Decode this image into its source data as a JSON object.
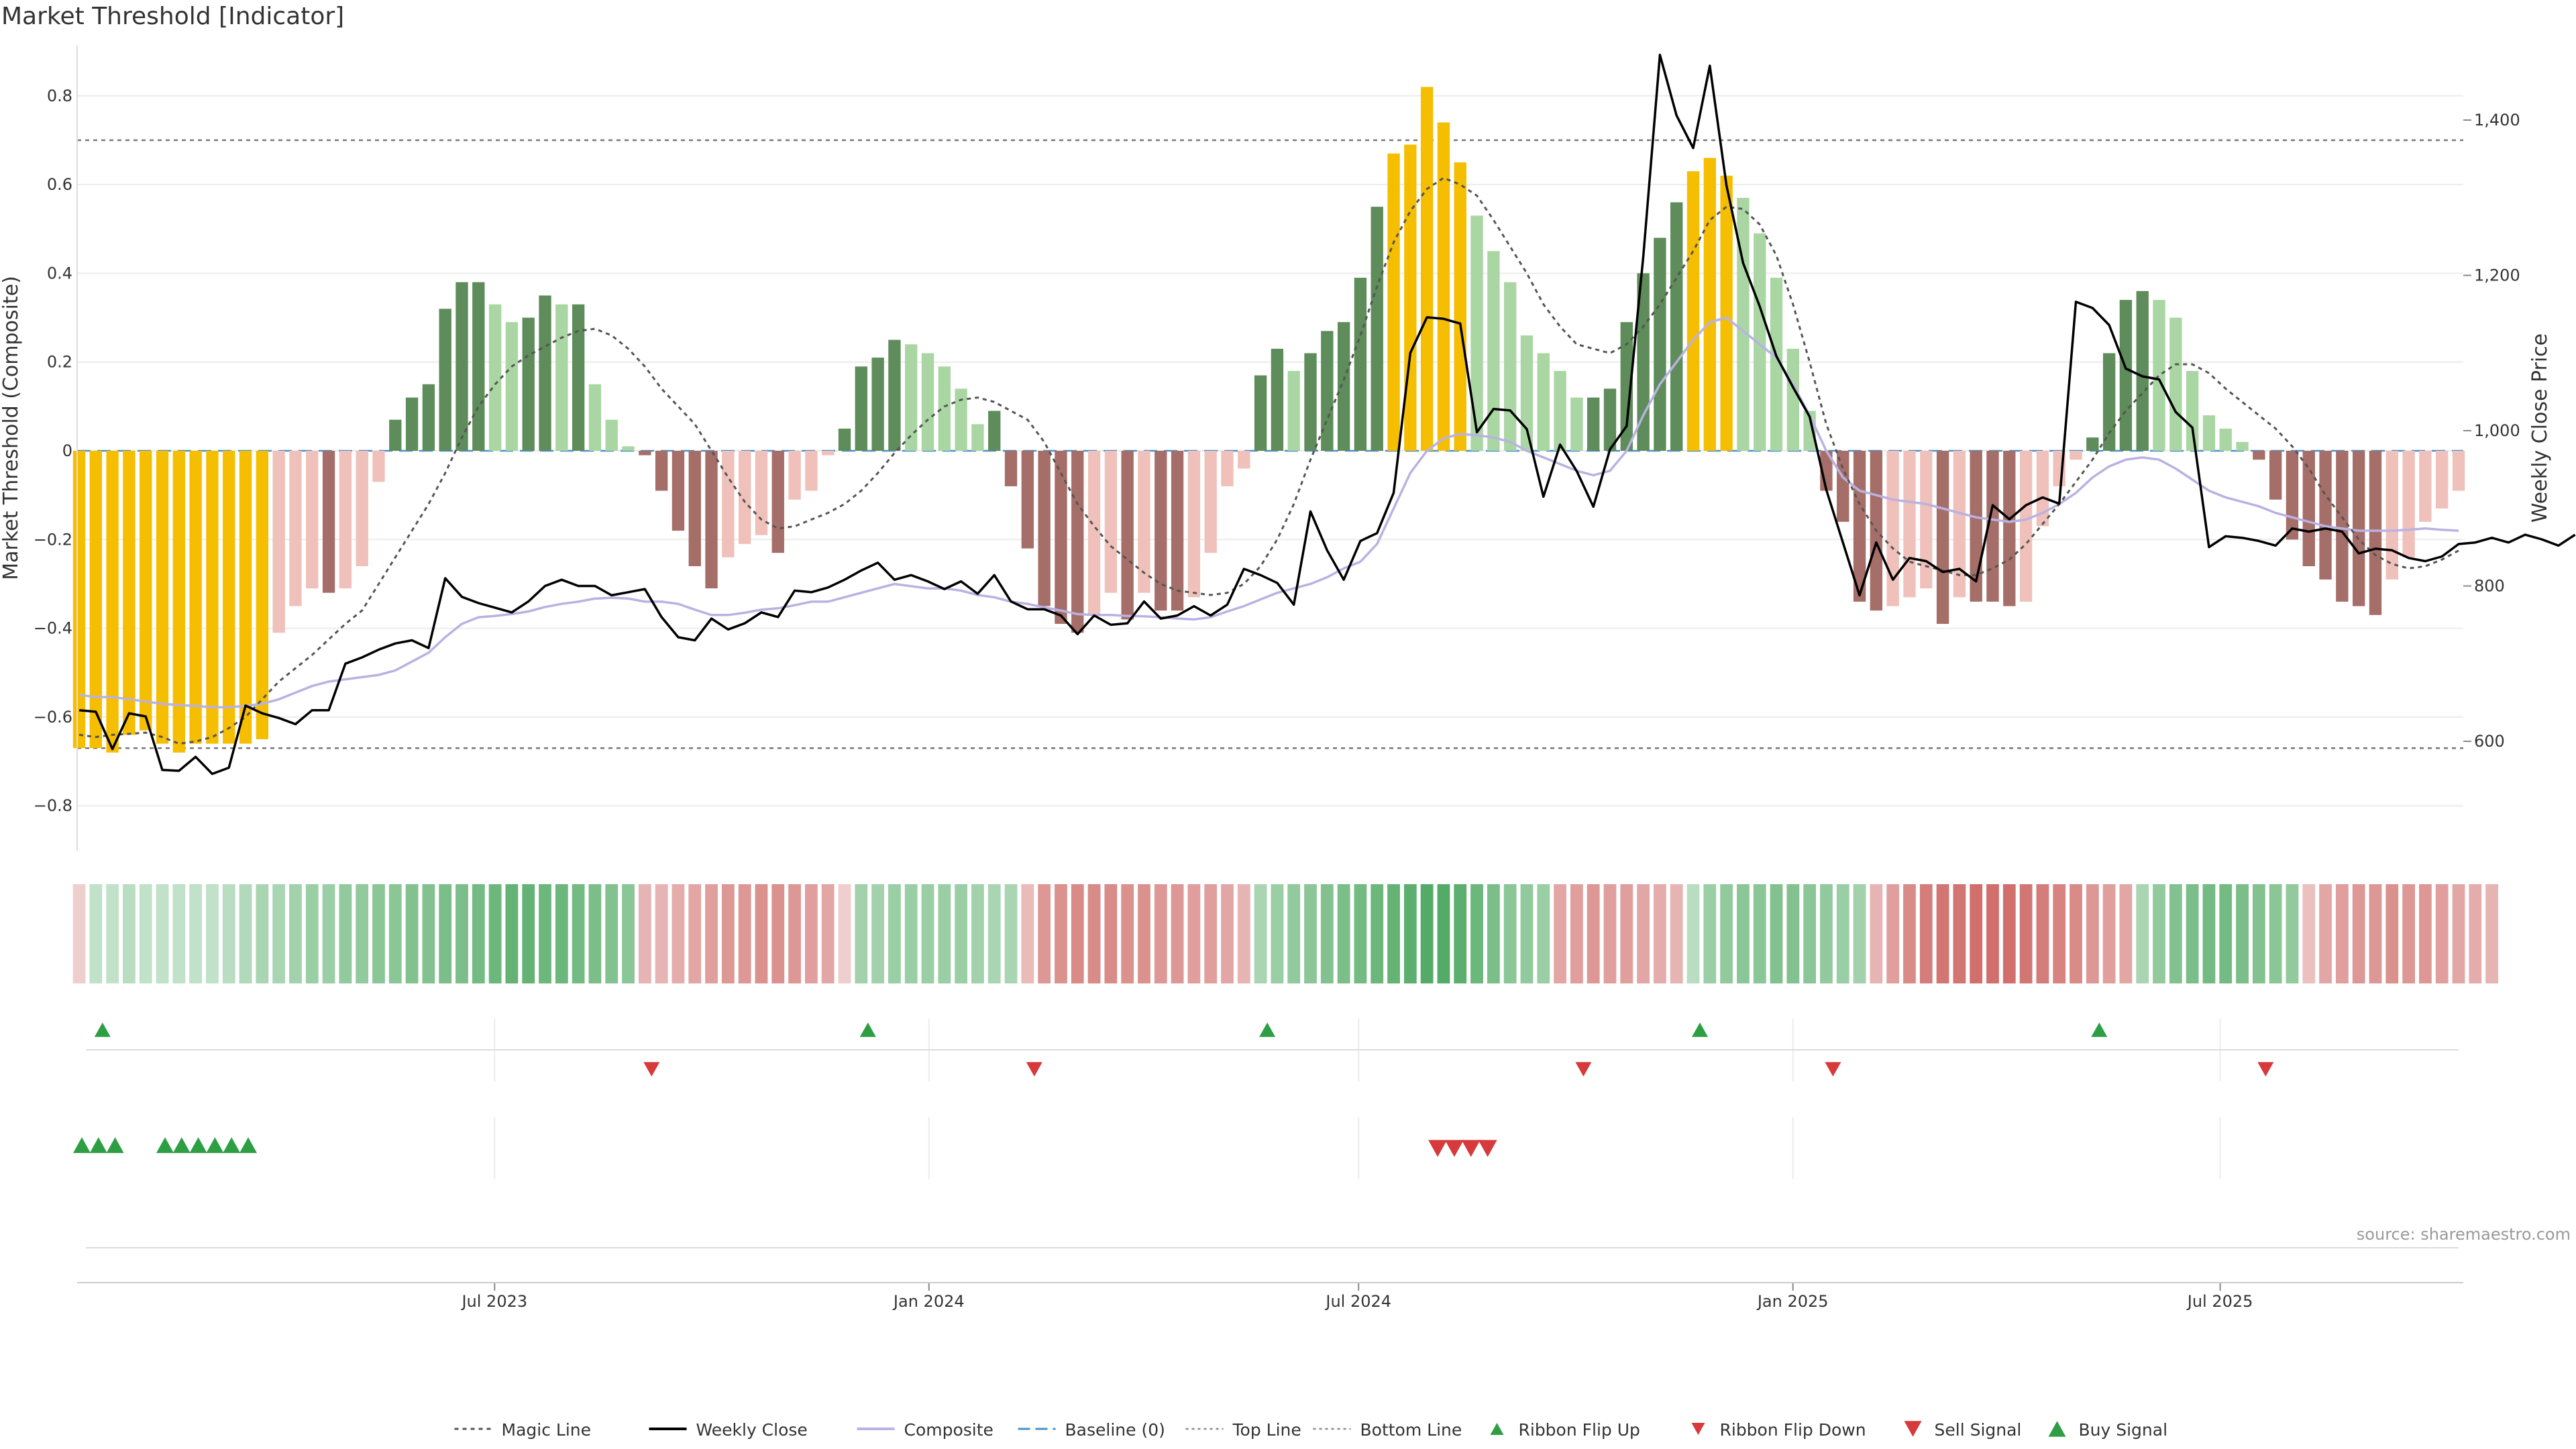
{
  "title": "Market Threshold [Indicator]",
  "source": "source: sharemaestro.com",
  "colors": {
    "gold": "#F5BE00",
    "green_dark": "#5E8C5A",
    "green_light": "#AAD6A3",
    "red_dark": "#A56E69",
    "red_light": "#EFC1BA",
    "weekly_close": "#000000",
    "composite": "#B9B2E2",
    "magic": "#555555",
    "baseline": "#4A90C8",
    "up_marker": "#2E9E45",
    "down_marker": "#D63A3A"
  },
  "chart_data": {
    "type": "bar",
    "title": "Market Threshold [Indicator]",
    "ylabel": "Market Threshold (Composite)",
    "y2label": "Weekly Close Price",
    "ylim": [
      -0.9,
      0.9
    ],
    "y2lim": [
      500,
      1500
    ],
    "yticks": [
      -0.8,
      -0.6,
      -0.4,
      -0.2,
      0,
      0.2,
      0.4,
      0.6,
      0.8
    ],
    "yticklabels": [
      "−0.8",
      "−0.6",
      "−0.4",
      "−0.2",
      "0",
      "0.2",
      "0.4",
      "0.6",
      "0.8"
    ],
    "y2ticks": [
      600,
      800,
      1000,
      1200,
      1400
    ],
    "y2ticklabels": [
      "600",
      "800",
      "1,000",
      "1,200",
      "1,400"
    ],
    "top_line": 0.7,
    "bottom_line": -0.67,
    "baseline": 0,
    "x_start": "2023-01-06",
    "x_end": "2025-10-10",
    "xticks": [
      {
        "date": "2023-07-01",
        "label": "Jul 2023"
      },
      {
        "date": "2024-01-01",
        "label": "Jan 2024"
      },
      {
        "date": "2024-07-01",
        "label": "Jul 2024"
      },
      {
        "date": "2025-01-01",
        "label": "Jan 2025"
      },
      {
        "date": "2025-07-01",
        "label": "Jul 2025"
      }
    ],
    "composite_bars": [
      -0.67,
      -0.67,
      -0.68,
      -0.64,
      -0.63,
      -0.66,
      -0.68,
      -0.66,
      -0.66,
      -0.66,
      -0.66,
      -0.65,
      -0.41,
      -0.35,
      -0.31,
      -0.32,
      -0.31,
      -0.26,
      -0.07,
      0.07,
      0.12,
      0.15,
      0.32,
      0.38,
      0.38,
      0.33,
      0.29,
      0.3,
      0.35,
      0.33,
      0.33,
      0.15,
      0.07,
      0.01,
      -0.01,
      -0.09,
      -0.18,
      -0.26,
      -0.31,
      -0.24,
      -0.21,
      -0.19,
      -0.23,
      -0.11,
      -0.09,
      -0.01,
      0.05,
      0.19,
      0.21,
      0.25,
      0.24,
      0.22,
      0.19,
      0.14,
      0.06,
      0.09,
      -0.08,
      -0.22,
      -0.35,
      -0.39,
      -0.41,
      -0.37,
      -0.32,
      -0.38,
      -0.32,
      -0.36,
      -0.36,
      -0.33,
      -0.23,
      -0.08,
      -0.04,
      0.17,
      0.23,
      0.18,
      0.22,
      0.27,
      0.29,
      0.39,
      0.55,
      0.67,
      0.69,
      0.82,
      0.74,
      0.65,
      0.53,
      0.45,
      0.38,
      0.26,
      0.22,
      0.18,
      0.12,
      0.12,
      0.14,
      0.29,
      0.4,
      0.48,
      0.56,
      0.63,
      0.66,
      0.62,
      0.57,
      0.49,
      0.39,
      0.23,
      0.09,
      -0.09,
      -0.16,
      -0.34,
      -0.36,
      -0.35,
      -0.33,
      -0.31,
      -0.39,
      -0.33,
      -0.34,
      -0.34,
      -0.35,
      -0.34,
      -0.17,
      -0.08,
      -0.02,
      0.03,
      0.22,
      0.34,
      0.36,
      0.34,
      0.3,
      0.18,
      0.08,
      0.05,
      0.02,
      -0.02,
      -0.11,
      -0.2,
      -0.26,
      -0.29,
      -0.34,
      -0.35,
      -0.37,
      -0.29,
      -0.24,
      -0.16,
      -0.13,
      -0.09
    ],
    "weekly_close": [
      640,
      638,
      590,
      636,
      632,
      563,
      562,
      580,
      558,
      566,
      646,
      636,
      630,
      622,
      640,
      640,
      700,
      708,
      718,
      726,
      730,
      720,
      810,
      786,
      778,
      772,
      766,
      780,
      800,
      808,
      800,
      800,
      788,
      792,
      796,
      760,
      734,
      730,
      758,
      744,
      752,
      766,
      760,
      794,
      792,
      798,
      808,
      820,
      830,
      808,
      814,
      806,
      796,
      806,
      790,
      814,
      780,
      770,
      770,
      762,
      738,
      762,
      750,
      752,
      780,
      758,
      762,
      774,
      762,
      776,
      822,
      814,
      804,
      776,
      896,
      846,
      808,
      858,
      868,
      920,
      1100,
      1146,
      1144,
      1138,
      998,
      1028,
      1026,
      1002,
      915,
      982,
      948,
      902,
      976,
      1006,
      1224,
      1484,
      1406,
      1364,
      1470,
      1316,
      1216,
      1160,
      1096,
      1056,
      1018,
      924,
      856,
      788,
      856,
      808,
      836,
      832,
      818,
      822,
      806,
      904,
      886,
      904,
      914,
      906,
      1166,
      1158,
      1136,
      1080,
      1070,
      1066,
      1024,
      1004,
      850,
      864,
      862,
      858,
      852,
      874,
      870,
      874,
      870,
      842,
      848,
      846,
      836,
      832,
      838,
      854,
      856,
      862,
      856,
      866,
      860,
      852,
      866
    ],
    "composite_line": [
      -0.55,
      -0.555,
      -0.555,
      -0.56,
      -0.565,
      -0.57,
      -0.573,
      -0.575,
      -0.578,
      -0.578,
      -0.575,
      -0.57,
      -0.56,
      -0.545,
      -0.53,
      -0.52,
      -0.515,
      -0.51,
      -0.505,
      -0.495,
      -0.475,
      -0.455,
      -0.42,
      -0.39,
      -0.375,
      -0.372,
      -0.368,
      -0.362,
      -0.352,
      -0.345,
      -0.34,
      -0.333,
      -0.331,
      -0.333,
      -0.34,
      -0.34,
      -0.345,
      -0.358,
      -0.37,
      -0.37,
      -0.365,
      -0.358,
      -0.355,
      -0.348,
      -0.34,
      -0.34,
      -0.33,
      -0.32,
      -0.31,
      -0.3,
      -0.305,
      -0.31,
      -0.31,
      -0.315,
      -0.325,
      -0.33,
      -0.34,
      -0.345,
      -0.353,
      -0.36,
      -0.368,
      -0.37,
      -0.37,
      -0.372,
      -0.373,
      -0.375,
      -0.378,
      -0.38,
      -0.375,
      -0.362,
      -0.35,
      -0.335,
      -0.32,
      -0.31,
      -0.3,
      -0.285,
      -0.265,
      -0.25,
      -0.21,
      -0.13,
      -0.05,
      0.0,
      0.028,
      0.038,
      0.035,
      0.03,
      0.02,
      0.0,
      -0.015,
      -0.03,
      -0.045,
      -0.055,
      -0.045,
      0.0,
      0.08,
      0.15,
      0.2,
      0.25,
      0.29,
      0.3,
      0.27,
      0.24,
      0.21,
      0.15,
      0.08,
      0.0,
      -0.06,
      -0.09,
      -0.1,
      -0.11,
      -0.115,
      -0.12,
      -0.13,
      -0.14,
      -0.15,
      -0.155,
      -0.16,
      -0.155,
      -0.14,
      -0.12,
      -0.095,
      -0.06,
      -0.035,
      -0.02,
      -0.015,
      -0.02,
      -0.04,
      -0.065,
      -0.09,
      -0.105,
      -0.115,
      -0.125,
      -0.14,
      -0.15,
      -0.16,
      -0.17,
      -0.175,
      -0.18,
      -0.18,
      -0.18,
      -0.178,
      -0.175,
      -0.178,
      -0.18
    ],
    "magic_line": [
      -0.64,
      -0.645,
      -0.64,
      -0.638,
      -0.635,
      -0.645,
      -0.66,
      -0.655,
      -0.645,
      -0.625,
      -0.6,
      -0.56,
      -0.52,
      -0.49,
      -0.46,
      -0.425,
      -0.39,
      -0.36,
      -0.3,
      -0.24,
      -0.18,
      -0.12,
      -0.05,
      0.03,
      0.1,
      0.15,
      0.19,
      0.215,
      0.235,
      0.255,
      0.27,
      0.275,
      0.26,
      0.23,
      0.19,
      0.14,
      0.1,
      0.06,
      0.0,
      -0.06,
      -0.115,
      -0.155,
      -0.175,
      -0.17,
      -0.155,
      -0.14,
      -0.12,
      -0.09,
      -0.05,
      -0.005,
      0.035,
      0.07,
      0.1,
      0.115,
      0.12,
      0.11,
      0.09,
      0.07,
      0.02,
      -0.05,
      -0.12,
      -0.17,
      -0.215,
      -0.245,
      -0.275,
      -0.3,
      -0.315,
      -0.32,
      -0.325,
      -0.32,
      -0.3,
      -0.26,
      -0.2,
      -0.12,
      -0.02,
      0.07,
      0.16,
      0.26,
      0.37,
      0.47,
      0.54,
      0.59,
      0.615,
      0.6,
      0.575,
      0.52,
      0.46,
      0.4,
      0.33,
      0.28,
      0.24,
      0.23,
      0.22,
      0.24,
      0.28,
      0.33,
      0.39,
      0.45,
      0.52,
      0.55,
      0.545,
      0.51,
      0.44,
      0.33,
      0.2,
      0.06,
      -0.04,
      -0.12,
      -0.18,
      -0.22,
      -0.25,
      -0.26,
      -0.27,
      -0.28,
      -0.28,
      -0.265,
      -0.245,
      -0.21,
      -0.165,
      -0.12,
      -0.07,
      -0.02,
      0.04,
      0.09,
      0.13,
      0.17,
      0.195,
      0.195,
      0.175,
      0.14,
      0.11,
      0.08,
      0.05,
      0.01,
      -0.04,
      -0.1,
      -0.15,
      -0.2,
      -0.235,
      -0.255,
      -0.265,
      -0.26,
      -0.245,
      -0.225
    ],
    "ribbon": [
      -0.1,
      0.15,
      0.15,
      0.2,
      0.15,
      0.15,
      0.15,
      0.15,
      0.15,
      0.2,
      0.25,
      0.3,
      0.3,
      0.35,
      0.4,
      0.4,
      0.45,
      0.45,
      0.5,
      0.5,
      0.55,
      0.55,
      0.6,
      0.6,
      0.65,
      0.7,
      0.75,
      0.75,
      0.7,
      0.7,
      0.65,
      0.6,
      0.55,
      0.5,
      -0.3,
      -0.3,
      -0.35,
      -0.4,
      -0.45,
      -0.5,
      -0.5,
      -0.55,
      -0.55,
      -0.5,
      -0.45,
      -0.4,
      -0.1,
      0.35,
      0.35,
      0.4,
      0.4,
      0.4,
      0.4,
      0.4,
      0.35,
      0.3,
      0.3,
      -0.25,
      -0.5,
      -0.55,
      -0.6,
      -0.6,
      -0.6,
      -0.55,
      -0.55,
      -0.5,
      -0.5,
      -0.45,
      -0.45,
      -0.4,
      -0.3,
      0.3,
      0.4,
      0.45,
      0.5,
      0.55,
      0.6,
      0.65,
      0.7,
      0.75,
      0.8,
      0.85,
      0.85,
      0.8,
      0.7,
      0.6,
      0.5,
      0.45,
      0.4,
      -0.4,
      -0.45,
      -0.5,
      -0.45,
      -0.45,
      -0.4,
      -0.35,
      -0.3,
      0.2,
      0.4,
      0.45,
      0.5,
      0.5,
      0.55,
      0.55,
      0.5,
      0.45,
      0.4,
      0.35,
      -0.3,
      -0.45,
      -0.6,
      -0.7,
      -0.75,
      -0.75,
      -0.8,
      -0.8,
      -0.8,
      -0.75,
      -0.7,
      -0.65,
      -0.6,
      -0.5,
      -0.45,
      -0.4,
      0.3,
      0.45,
      0.55,
      0.6,
      0.65,
      0.65,
      0.6,
      0.55,
      0.5,
      0.45,
      -0.2,
      -0.4,
      -0.45,
      -0.5,
      -0.5,
      -0.55,
      -0.5,
      -0.5,
      -0.45,
      -0.4,
      -0.35,
      -0.3
    ],
    "ribbon_flip_up": [
      1,
      47,
      71,
      97,
      121
    ],
    "ribbon_flip_down": [
      34,
      57,
      90,
      105,
      131
    ],
    "buy_signals": [
      0,
      1,
      2,
      5,
      6,
      7,
      8,
      9,
      10
    ],
    "sell_signals": [
      81,
      82,
      83,
      84
    ],
    "legend": [
      {
        "label": "Magic Line",
        "key": "magic"
      },
      {
        "label": "Weekly Close",
        "key": "close"
      },
      {
        "label": "Composite",
        "key": "composite"
      },
      {
        "label": "Baseline (0)",
        "key": "baseline"
      },
      {
        "label": "Top Line",
        "key": "top"
      },
      {
        "label": "Bottom Line",
        "key": "bottom"
      },
      {
        "label": "Ribbon Flip Up",
        "key": "flip_up"
      },
      {
        "label": "Ribbon Flip Down",
        "key": "flip_down"
      },
      {
        "label": "Sell Signal",
        "key": "sell"
      },
      {
        "label": "Buy Signal",
        "key": "buy"
      }
    ],
    "legend_placement": "bottom-center",
    "grid": true
  }
}
